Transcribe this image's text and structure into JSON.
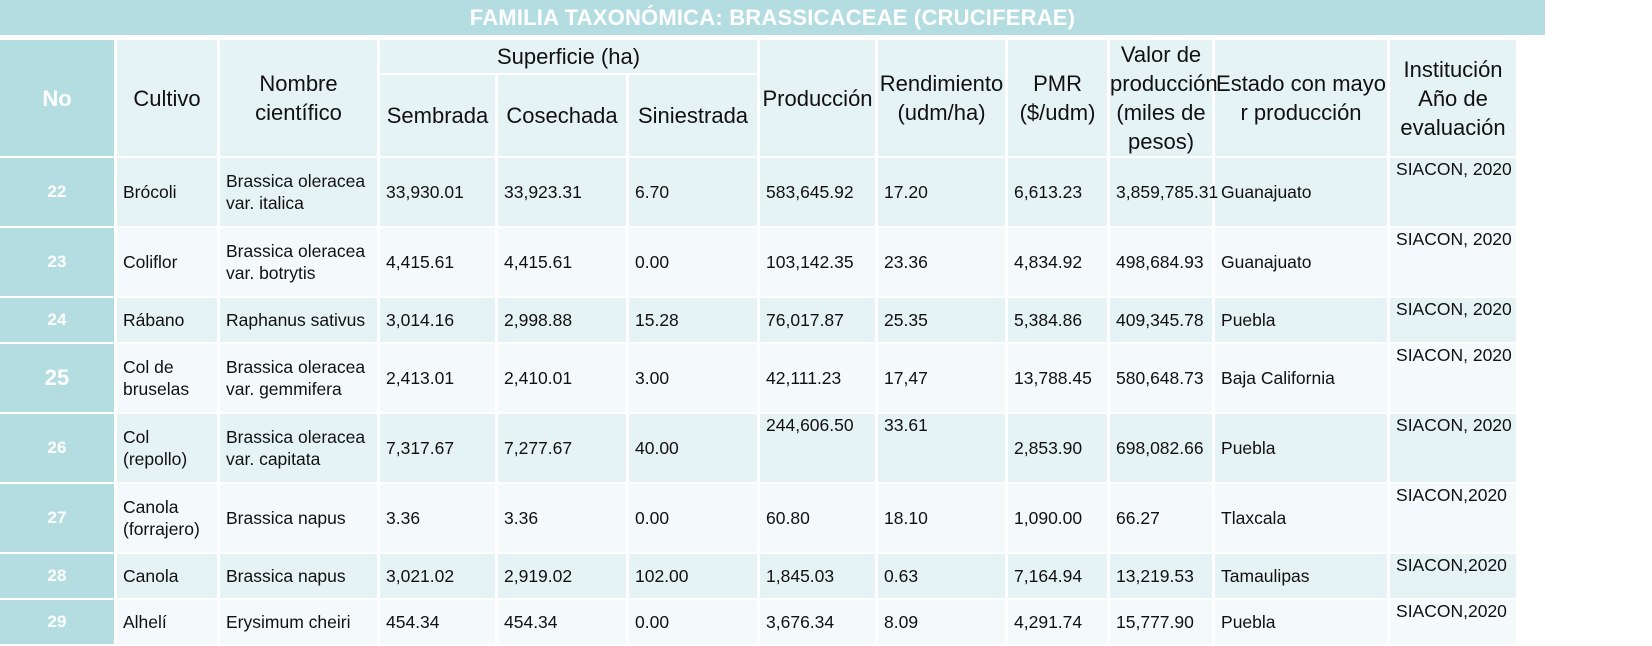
{
  "title": "FAMILIA TAXONÓMICA: BRASSICACEAE (CRUCIFERAE)",
  "headers": {
    "no": "No",
    "cultivo": "Cultivo",
    "nombre": "Nombre científico",
    "superficie": "Superficie (ha)",
    "sembrada": "Sembrada",
    "cosechada": "Cosechada",
    "siniestrada": "Siniestrada",
    "produccion": "Producción",
    "rendimiento": "Rendimiento (udm/ha)",
    "pmr": "PMR ($/udm)",
    "valor": "Valor de producción (miles de pesos)",
    "estado": "Estado con mayor producción",
    "institucion": "Institución Año de evaluación"
  },
  "rows": [
    {
      "no": "22",
      "cultivo": "Brócoli",
      "nombre": "Brassica oleracea var. italica",
      "sembrada": "33,930.01",
      "cosechada": "33,923.31",
      "siniestrada": "6.70",
      "produccion": "583,645.92",
      "rendimiento": "17.20",
      "pmr": "6,613.23",
      "valor": "3,859,785.31",
      "estado": "Guanajuato",
      "institucion": "SIACON, 2020"
    },
    {
      "no": "23",
      "cultivo": "Coliflor",
      "nombre": "Brassica oleracea var. botrytis",
      "sembrada": "4,415.61",
      "cosechada": "4,415.61",
      "siniestrada": "0.00",
      "produccion": "103,142.35",
      "rendimiento": "23.36",
      "pmr": "4,834.92",
      "valor": "498,684.93",
      "estado": "Guanajuato",
      "institucion": "SIACON, 2020"
    },
    {
      "no": "24",
      "cultivo": "Rábano",
      "nombre": "Raphanus sativus",
      "sembrada": "3,014.16",
      "cosechada": "2,998.88",
      "siniestrada": "15.28",
      "produccion": "76,017.87",
      "rendimiento": "25.35",
      "pmr": "5,384.86",
      "valor": "409,345.78",
      "estado": "Puebla",
      "institucion": "SIACON, 2020"
    },
    {
      "no": "25",
      "cultivo": "Col de bruselas",
      "nombre": "Brassica oleracea var. gemmifera",
      "sembrada": "2,413.01",
      "cosechada": "2,410.01",
      "siniestrada": "3.00",
      "produccion": "42,111.23",
      "rendimiento": "17,47",
      "pmr": "13,788.45",
      "valor": "580,648.73",
      "estado": "Baja California",
      "institucion": "SIACON, 2020"
    },
    {
      "no": "26",
      "cultivo": "Col (repollo)",
      "nombre": "Brassica oleracea var. capitata",
      "sembrada": "7,317.67",
      "cosechada": "7,277.67",
      "siniestrada": "40.00",
      "produccion": "244,606.50",
      "rendimiento": "33.61",
      "pmr": "2,853.90",
      "valor": "698,082.66",
      "estado": "Puebla",
      "institucion": "SIACON, 2020"
    },
    {
      "no": "27",
      "cultivo": "Canola (forrajero)",
      "nombre": "Brassica napus",
      "sembrada": "3.36",
      "cosechada": "3.36",
      "siniestrada": "0.00",
      "produccion": "60.80",
      "rendimiento": "18.10",
      "pmr": "1,090.00",
      "valor": "66.27",
      "estado": "Tlaxcala",
      "institucion": "SIACON,2020"
    },
    {
      "no": "28",
      "cultivo": "Canola",
      "nombre": "Brassica napus",
      "sembrada": "3,021.02",
      "cosechada": "2,919.02",
      "siniestrada": "102.00",
      "produccion": "1,845.03",
      "rendimiento": "0.63",
      "pmr": "7,164.94",
      "valor": "13,219.53",
      "estado": "Tamaulipas",
      "institucion": "SIACON,2020"
    },
    {
      "no": "29",
      "cultivo": "Alhelí",
      "nombre": "Erysimum cheiri",
      "sembrada": "454.34",
      "cosechada": "454.34",
      "siniestrada": "0.00",
      "produccion": "3,676.34",
      "rendimiento": "8.09",
      "pmr": "4,291.74",
      "valor": "15,777.90",
      "estado": "Puebla",
      "institucion": "SIACON,2020"
    }
  ]
}
